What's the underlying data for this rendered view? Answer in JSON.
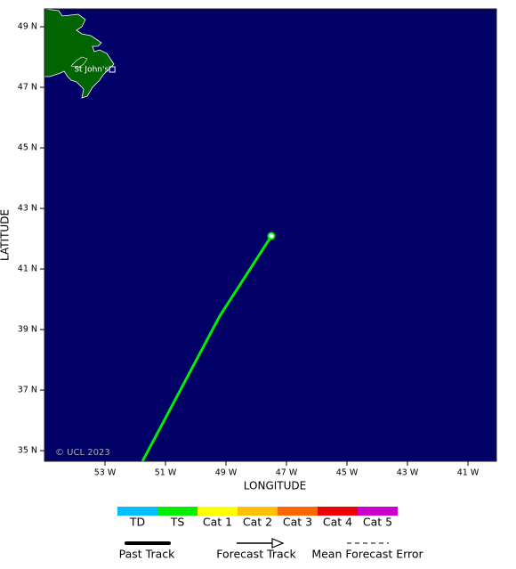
{
  "map": {
    "xlabel": "LONGITUDE",
    "ylabel": "LATITUDE",
    "xlim": [
      -55,
      -40.06
    ],
    "ylim": [
      34.65,
      49.59
    ],
    "xticks": [
      {
        "value": -53,
        "label": "53 W"
      },
      {
        "value": -51,
        "label": "51 W"
      },
      {
        "value": -49,
        "label": "49 W"
      },
      {
        "value": -47,
        "label": "47 W"
      },
      {
        "value": -45,
        "label": "45 W"
      },
      {
        "value": -43,
        "label": "43 W"
      },
      {
        "value": -41,
        "label": "41 W"
      }
    ],
    "yticks": [
      {
        "value": 35,
        "label": "35 N"
      },
      {
        "value": 37,
        "label": "37 N"
      },
      {
        "value": 39,
        "label": "39 N"
      },
      {
        "value": 41,
        "label": "41 N"
      },
      {
        "value": 43,
        "label": "43 N"
      },
      {
        "value": 45,
        "label": "45 N"
      },
      {
        "value": 47,
        "label": "47 N"
      },
      {
        "value": 49,
        "label": "49 N"
      }
    ],
    "place": {
      "name": "St John's",
      "lon": -52.76,
      "lat": 47.59
    },
    "copyright": "© UCL 2023",
    "track": {
      "color": "#00ee00",
      "lon": [
        -51.76,
        -49.21,
        -47.5
      ],
      "lat": [
        34.65,
        39.44,
        42.09
      ]
    }
  },
  "legend": {
    "categories": [
      {
        "name": "TD",
        "color": "#00bfff"
      },
      {
        "name": "TS",
        "color": "#00ee00"
      },
      {
        "name": "Cat 1",
        "color": "#ffff00"
      },
      {
        "name": "Cat 2",
        "color": "#ffc000"
      },
      {
        "name": "Cat 3",
        "color": "#ff6600"
      },
      {
        "name": "Cat 4",
        "color": "#ee0000"
      },
      {
        "name": "Cat 5",
        "color": "#cc00cc"
      }
    ],
    "lines": [
      "Past Track",
      "Forecast Track",
      "Mean Forecast Error"
    ]
  }
}
